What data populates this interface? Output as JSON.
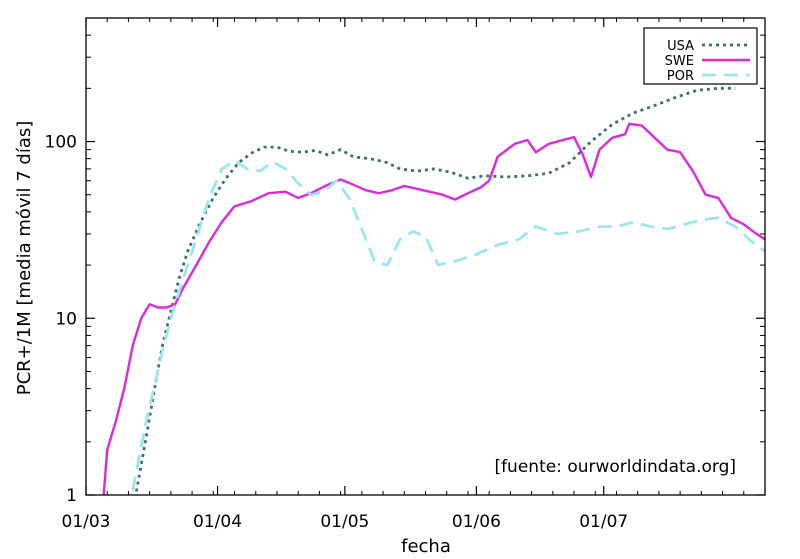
{
  "chart_data": {
    "type": "line",
    "title": "",
    "xlabel": "fecha",
    "ylabel": "PCR+/1M [media móvil 7 días]",
    "yscale": "log",
    "ylim": [
      1,
      500
    ],
    "xlim": [
      "2020-03-01",
      "2020-08-08"
    ],
    "xticks": [
      {
        "date": "2020-03-01",
        "label": "01/03"
      },
      {
        "date": "2020-04-01",
        "label": "01/04"
      },
      {
        "date": "2020-05-01",
        "label": "01/05"
      },
      {
        "date": "2020-06-01",
        "label": "01/06"
      },
      {
        "date": "2020-07-01",
        "label": "01/07"
      }
    ],
    "yticks": [
      {
        "value": 1,
        "label": "1"
      },
      {
        "value": 10,
        "label": "10"
      },
      {
        "value": 100,
        "label": "100"
      }
    ],
    "grid": false,
    "legend_position": "top-right",
    "annotation": "[fuente: ourworldindata.org]",
    "series": [
      {
        "name": "USA",
        "color": "#3f6f73",
        "style": "dotted",
        "points": [
          [
            "2020-03-12",
            0.8
          ],
          [
            "2020-03-15",
            2
          ],
          [
            "2020-03-17",
            3.8
          ],
          [
            "2020-03-19",
            7
          ],
          [
            "2020-03-21",
            11
          ],
          [
            "2020-03-23",
            17
          ],
          [
            "2020-03-25",
            24
          ],
          [
            "2020-03-28",
            35
          ],
          [
            "2020-03-31",
            48
          ],
          [
            "2020-04-03",
            62
          ],
          [
            "2020-04-06",
            76
          ],
          [
            "2020-04-09",
            86
          ],
          [
            "2020-04-12",
            93
          ],
          [
            "2020-04-15",
            93
          ],
          [
            "2020-04-18",
            88
          ],
          [
            "2020-04-21",
            87
          ],
          [
            "2020-04-24",
            89
          ],
          [
            "2020-04-27",
            84
          ],
          [
            "2020-04-30",
            90
          ],
          [
            "2020-05-03",
            82
          ],
          [
            "2020-05-07",
            80
          ],
          [
            "2020-05-11",
            76
          ],
          [
            "2020-05-14",
            70
          ],
          [
            "2020-05-18",
            68
          ],
          [
            "2020-05-22",
            70
          ],
          [
            "2020-05-26",
            67
          ],
          [
            "2020-05-30",
            62
          ],
          [
            "2020-06-03",
            64
          ],
          [
            "2020-06-08",
            63
          ],
          [
            "2020-06-13",
            64
          ],
          [
            "2020-06-18",
            66
          ],
          [
            "2020-06-23",
            76
          ],
          [
            "2020-06-28",
            100
          ],
          [
            "2020-07-03",
            125
          ],
          [
            "2020-07-08",
            145
          ],
          [
            "2020-07-13",
            160
          ],
          [
            "2020-07-18",
            178
          ],
          [
            "2020-07-23",
            195
          ],
          [
            "2020-07-28",
            200
          ],
          [
            "2020-08-01",
            200
          ]
        ]
      },
      {
        "name": "SWE",
        "color": "#dd28dd",
        "style": "solid",
        "points": [
          [
            "2020-03-05",
            0.9
          ],
          [
            "2020-03-06",
            1.8
          ],
          [
            "2020-03-08",
            2.6
          ],
          [
            "2020-03-10",
            4
          ],
          [
            "2020-03-12",
            7
          ],
          [
            "2020-03-14",
            10
          ],
          [
            "2020-03-16",
            12
          ],
          [
            "2020-03-18",
            11.5
          ],
          [
            "2020-03-20",
            11.5
          ],
          [
            "2020-03-22",
            12
          ],
          [
            "2020-03-24",
            15
          ],
          [
            "2020-03-27",
            20
          ],
          [
            "2020-03-30",
            27
          ],
          [
            "2020-04-02",
            35
          ],
          [
            "2020-04-05",
            43
          ],
          [
            "2020-04-09",
            46
          ],
          [
            "2020-04-13",
            51
          ],
          [
            "2020-04-17",
            52
          ],
          [
            "2020-04-20",
            48
          ],
          [
            "2020-04-23",
            51
          ],
          [
            "2020-04-27",
            57
          ],
          [
            "2020-04-30",
            61
          ],
          [
            "2020-05-03",
            57
          ],
          [
            "2020-05-06",
            53
          ],
          [
            "2020-05-09",
            51
          ],
          [
            "2020-05-12",
            53
          ],
          [
            "2020-05-15",
            56
          ],
          [
            "2020-05-18",
            54
          ],
          [
            "2020-05-21",
            52
          ],
          [
            "2020-05-24",
            50
          ],
          [
            "2020-05-27",
            47
          ],
          [
            "2020-05-30",
            51
          ],
          [
            "2020-06-02",
            55
          ],
          [
            "2020-06-04",
            60
          ],
          [
            "2020-06-06",
            82
          ],
          [
            "2020-06-10",
            97
          ],
          [
            "2020-06-13",
            102
          ],
          [
            "2020-06-15",
            87
          ],
          [
            "2020-06-18",
            97
          ],
          [
            "2020-06-22",
            103
          ],
          [
            "2020-06-24",
            106
          ],
          [
            "2020-06-26",
            85
          ],
          [
            "2020-06-28",
            63
          ],
          [
            "2020-06-30",
            90
          ],
          [
            "2020-07-03",
            105
          ],
          [
            "2020-07-06",
            110
          ],
          [
            "2020-07-07",
            126
          ],
          [
            "2020-07-10",
            123
          ],
          [
            "2020-07-13",
            105
          ],
          [
            "2020-07-16",
            90
          ],
          [
            "2020-07-19",
            87
          ],
          [
            "2020-07-22",
            68
          ],
          [
            "2020-07-25",
            50
          ],
          [
            "2020-07-28",
            48
          ],
          [
            "2020-07-31",
            37
          ],
          [
            "2020-08-03",
            34
          ],
          [
            "2020-08-06",
            30
          ],
          [
            "2020-08-09",
            27
          ],
          [
            "2020-08-11",
            24
          ]
        ]
      },
      {
        "name": "POR",
        "color": "#99e6f0",
        "style": "dashed",
        "points": [
          [
            "2020-03-11",
            0.8
          ],
          [
            "2020-03-13",
            1.4
          ],
          [
            "2020-03-15",
            2.5
          ],
          [
            "2020-03-17",
            4
          ],
          [
            "2020-03-19",
            6.5
          ],
          [
            "2020-03-21",
            10
          ],
          [
            "2020-03-24",
            17
          ],
          [
            "2020-03-27",
            28
          ],
          [
            "2020-03-30",
            48
          ],
          [
            "2020-04-02",
            70
          ],
          [
            "2020-04-05",
            78
          ],
          [
            "2020-04-08",
            70
          ],
          [
            "2020-04-11",
            68
          ],
          [
            "2020-04-14",
            77
          ],
          [
            "2020-04-17",
            70
          ],
          [
            "2020-04-20",
            58
          ],
          [
            "2020-04-23",
            50
          ],
          [
            "2020-04-26",
            52
          ],
          [
            "2020-04-29",
            60
          ],
          [
            "2020-05-02",
            48
          ],
          [
            "2020-05-05",
            32
          ],
          [
            "2020-05-08",
            21
          ],
          [
            "2020-05-11",
            20
          ],
          [
            "2020-05-14",
            28
          ],
          [
            "2020-05-17",
            31
          ],
          [
            "2020-05-20",
            29
          ],
          [
            "2020-05-23",
            20
          ],
          [
            "2020-05-27",
            21
          ],
          [
            "2020-06-01",
            23
          ],
          [
            "2020-06-06",
            26
          ],
          [
            "2020-06-11",
            28
          ],
          [
            "2020-06-15",
            33
          ],
          [
            "2020-06-20",
            30
          ],
          [
            "2020-06-25",
            31
          ],
          [
            "2020-06-30",
            33
          ],
          [
            "2020-07-04",
            33
          ],
          [
            "2020-07-08",
            35
          ],
          [
            "2020-07-12",
            33
          ],
          [
            "2020-07-16",
            32
          ],
          [
            "2020-07-20",
            34
          ],
          [
            "2020-07-24",
            36
          ],
          [
            "2020-07-28",
            37
          ],
          [
            "2020-08-01",
            33
          ],
          [
            "2020-08-05",
            27
          ],
          [
            "2020-08-09",
            23
          ]
        ]
      }
    ]
  }
}
